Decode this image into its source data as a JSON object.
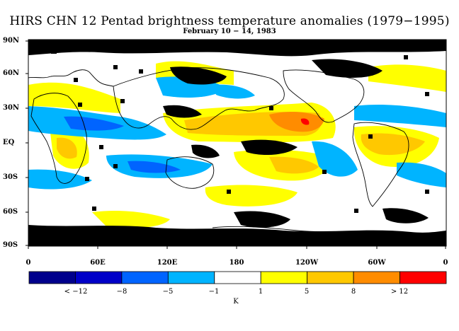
{
  "title": "HIRS CHN 12 Pentad brightness temperature anomalies (1979−1995)",
  "subtitle": "February 10 − 14, 1983",
  "lat_labels": [
    "90N",
    "60N",
    "30N",
    "EQ",
    "30S",
    "60S",
    "90S"
  ],
  "lon_labels": [
    "0",
    "60E",
    "120E",
    "180",
    "120W",
    "60W",
    "0"
  ],
  "colorbar": {
    "colors": [
      "#00008c",
      "#0000c8",
      "#0064ff",
      "#00b4ff",
      "#ffffff",
      "#ffff00",
      "#ffc800",
      "#ff8c00",
      "#ff0000"
    ],
    "labels": [
      "< −12",
      "−8",
      "−5",
      "−1",
      "1",
      "5",
      "8",
      "> 12"
    ],
    "unit": "K"
  },
  "palette": {
    "white": "#ffffff",
    "black": "#000000",
    "yellow": "#ffff00",
    "gold": "#ffc800",
    "orange": "#ff8c00",
    "red": "#ff0000",
    "light_blue": "#00b4ff",
    "blue": "#0064ff"
  }
}
